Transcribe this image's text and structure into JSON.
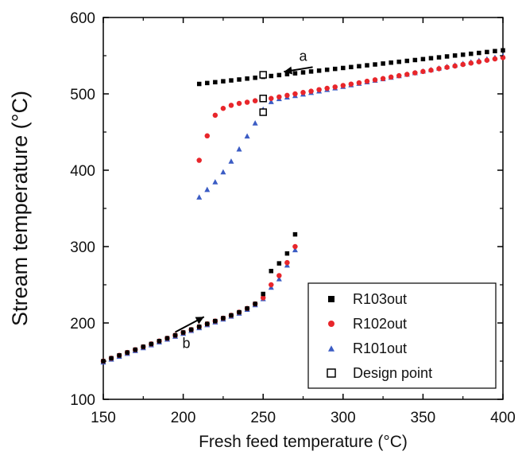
{
  "chart_data": {
    "type": "scatter",
    "xlabel": "Fresh feed temperature (°C)",
    "ylabel": "Stream temperature (°C)",
    "xlim": [
      150,
      400
    ],
    "ylim": [
      100,
      600
    ],
    "xticks": [
      150,
      200,
      250,
      300,
      350,
      400
    ],
    "yticks": [
      100,
      200,
      300,
      400,
      500,
      600
    ],
    "grid": false,
    "legend_position": "bottom-right",
    "series": [
      {
        "name": "R103out",
        "marker": "filled-square",
        "color": "#000000",
        "branches": {
          "upper": {
            "x": [
              210,
              215,
              220,
              225,
              230,
              235,
              240,
              245,
              250,
              255,
              260,
              265,
              270,
              275,
              280,
              285,
              290,
              295,
              300,
              305,
              310,
              315,
              320,
              325,
              330,
              335,
              340,
              345,
              350,
              355,
              360,
              365,
              370,
              375,
              380,
              385,
              390,
              395,
              400
            ],
            "y": [
              513,
              514.2,
              515.3,
              516.5,
              517.6,
              518.8,
              520,
              521.1,
              522.3,
              523.4,
              524.6,
              525.8,
              526.9,
              528.1,
              529.3,
              530.4,
              531.6,
              532.7,
              533.9,
              535.1,
              536.2,
              537.4,
              538.5,
              539.7,
              540.9,
              542,
              543.2,
              544.3,
              545.5,
              546.7,
              547.8,
              549,
              550.2,
              551.3,
              552.5,
              553.6,
              554.8,
              556,
              557
            ]
          },
          "lower": {
            "x": [
              150,
              155,
              160,
              165,
              170,
              175,
              180,
              185,
              190,
              195,
              200,
              205,
              210,
              215,
              220,
              225,
              230,
              235,
              240,
              245,
              250,
              255,
              260,
              265,
              270
            ],
            "y": [
              150,
              153.8,
              157.5,
              161.3,
              165,
              168.8,
              172.5,
              176.3,
              180,
              183.8,
              187.5,
              191.3,
              195,
              198.8,
              202.5,
              206.3,
              210,
              214,
              219,
              225,
              238,
              268,
              278,
              291,
              316
            ]
          }
        }
      },
      {
        "name": "R102out",
        "marker": "filled-circle",
        "color": "#e8262b",
        "branches": {
          "upper": {
            "x": [
              210,
              215,
              220,
              225,
              230,
              235,
              240,
              245,
              250,
              255,
              260,
              265,
              270,
              275,
              280,
              285,
              290,
              295,
              300,
              305,
              310,
              315,
              320,
              325,
              330,
              335,
              340,
              345,
              350,
              355,
              360,
              365,
              370,
              375,
              380,
              385,
              390,
              395,
              400
            ],
            "y": [
              413,
              445,
              472,
              481,
              485,
              487.5,
              489,
              491,
              492.5,
              494,
              496,
              498,
              500,
              501.8,
              503.5,
              505.5,
              507.3,
              509,
              511,
              512.8,
              514.5,
              516.5,
              518.3,
              520,
              522,
              523.8,
              525.5,
              527.5,
              529.3,
              531,
              533,
              534.8,
              536.5,
              538.5,
              540.3,
              542,
              544,
              545.8,
              547.5
            ]
          },
          "lower": {
            "x": [
              150,
              155,
              160,
              165,
              170,
              175,
              180,
              185,
              190,
              195,
              200,
              205,
              210,
              215,
              220,
              225,
              230,
              235,
              240,
              245,
              250,
              255,
              260,
              265,
              270
            ],
            "y": [
              150,
              153.8,
              157.5,
              161.3,
              165,
              168.8,
              172.5,
              176.3,
              180,
              183.8,
              187.5,
              191.3,
              195,
              198.8,
              202.5,
              206.3,
              210,
              214,
              219,
              225,
              233,
              250,
              262,
              279,
              300
            ]
          }
        }
      },
      {
        "name": "R101out",
        "marker": "filled-triangle",
        "color": "#3b5cc4",
        "branches": {
          "upper": {
            "x": [
              210,
              215,
              220,
              225,
              230,
              235,
              240,
              245,
              250,
              255,
              260,
              265,
              270,
              275,
              280,
              285,
              290,
              295,
              300,
              305,
              310,
              315,
              320,
              325,
              330,
              335,
              340,
              345,
              350,
              355,
              360,
              365,
              370,
              375,
              380,
              385,
              390,
              395,
              400
            ],
            "y": [
              365,
              375,
              385,
              398,
              412,
              428,
              445,
              462,
              480,
              490,
              494,
              496,
              498,
              500,
              502,
              504,
              506,
              508,
              510,
              512,
              514,
              516,
              518,
              520,
              522,
              524,
              526,
              528,
              530,
              532,
              534,
              536,
              538,
              540,
              542,
              544,
              546,
              548,
              550
            ]
          },
          "lower": {
            "x": [
              150,
              155,
              160,
              165,
              170,
              175,
              180,
              185,
              190,
              195,
              200,
              205,
              210,
              215,
              220,
              225,
              230,
              235,
              240,
              245,
              250,
              255,
              260,
              265,
              270
            ],
            "y": [
              149,
              152.8,
              156.5,
              160.3,
              164,
              167.8,
              171.5,
              175.3,
              179,
              182.8,
              186.5,
              190.3,
              194,
              197.8,
              201.5,
              205.3,
              209,
              213,
              218,
              224,
              232,
              247,
              258,
              276,
              296
            ]
          }
        }
      },
      {
        "name": "Design point",
        "marker": "open-square",
        "color": "#000000",
        "x": [
          250,
          250,
          250
        ],
        "y": [
          525,
          494,
          476
        ]
      }
    ],
    "annotations": [
      {
        "text": "a",
        "arrow_from": [
          281,
          535
        ],
        "arrow_to": [
          263,
          529
        ]
      },
      {
        "text": "b",
        "arrow_from": [
          195,
          188
        ],
        "arrow_to": [
          213,
          208
        ]
      }
    ]
  }
}
